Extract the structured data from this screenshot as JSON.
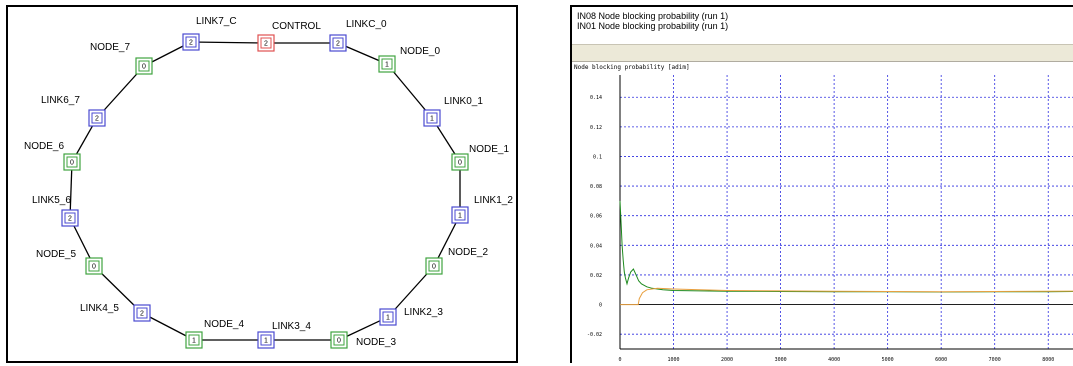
{
  "network": {
    "nodes": [
      {
        "label": "CONTROL",
        "value": "2",
        "kind": "control"
      },
      {
        "label": "LINKC_0",
        "value": "2",
        "kind": "link"
      },
      {
        "label": "NODE_0",
        "value": "1",
        "kind": "node"
      },
      {
        "label": "LINK0_1",
        "value": "1",
        "kind": "link"
      },
      {
        "label": "NODE_1",
        "value": "0",
        "kind": "node"
      },
      {
        "label": "LINK1_2",
        "value": "1",
        "kind": "link"
      },
      {
        "label": "NODE_2",
        "value": "0",
        "kind": "node"
      },
      {
        "label": "LINK2_3",
        "value": "1",
        "kind": "link"
      },
      {
        "label": "NODE_3",
        "value": "0",
        "kind": "node"
      },
      {
        "label": "LINK3_4",
        "value": "1",
        "kind": "link"
      },
      {
        "label": "NODE_4",
        "value": "1",
        "kind": "node"
      },
      {
        "label": "LINK4_5",
        "value": "2",
        "kind": "link"
      },
      {
        "label": "NODE_5",
        "value": "0",
        "kind": "node"
      },
      {
        "label": "LINK5_6",
        "value": "2",
        "kind": "link"
      },
      {
        "label": "NODE_6",
        "value": "0",
        "kind": "node"
      },
      {
        "label": "LINK6_7",
        "value": "2",
        "kind": "link"
      },
      {
        "label": "NODE_7",
        "value": "0",
        "kind": "node"
      },
      {
        "label": "LINK7_C",
        "value": "2",
        "kind": "link"
      }
    ],
    "colors": {
      "node": "#3fa33f",
      "link": "#4a4ad0",
      "control": "#e05050",
      "edge": "#000000"
    }
  },
  "plot": {
    "legend": [
      {
        "text": "IN08 Node blocking probability (run 1)",
        "color": "#1e8a1e"
      },
      {
        "text": "IN01 Node blocking probability (run 1)",
        "color": "#e8a040"
      }
    ],
    "title": "Node blocking probability [adim]"
  },
  "chart_data": {
    "type": "line",
    "title": "Node blocking probability [adim]",
    "xlabel": "",
    "ylabel": "",
    "xlim": [
      0,
      8500
    ],
    "ylim": [
      -0.03,
      0.155
    ],
    "xticks": [
      "0",
      "1000",
      "2000",
      "3000",
      "4000",
      "5000",
      "6000",
      "7000",
      "8000"
    ],
    "yticks": [
      "0.14",
      "0.12",
      "0.1",
      "0.08",
      "0.06",
      "0.04",
      "0.02",
      "0",
      "-0.02"
    ],
    "grid": true,
    "series": [
      {
        "name": "IN08 Node blocking probability (run 1)",
        "color": "#1e8a1e",
        "x": [
          0,
          20,
          40,
          60,
          80,
          100,
          130,
          160,
          200,
          250,
          300,
          350,
          400,
          500,
          600,
          800,
          1000,
          1500,
          2000,
          3000,
          4000,
          5000,
          6000,
          7000,
          8000,
          8500
        ],
        "y": [
          0.07,
          0.055,
          0.04,
          0.03,
          0.022,
          0.018,
          0.014,
          0.018,
          0.022,
          0.024,
          0.02,
          0.016,
          0.014,
          0.012,
          0.011,
          0.01,
          0.0095,
          0.0092,
          0.009,
          0.0088,
          0.0087,
          0.0086,
          0.0085,
          0.0086,
          0.0087,
          0.0088
        ]
      },
      {
        "name": "IN01 Node blocking probability (run 1)",
        "color": "#e8a040",
        "x": [
          0,
          200,
          340,
          360,
          420,
          500,
          700,
          1000,
          1500,
          2000,
          3000,
          4000,
          5000,
          6000,
          7000,
          8000,
          8500
        ],
        "y": [
          0,
          0,
          0,
          0.004,
          0.008,
          0.01,
          0.011,
          0.0105,
          0.01,
          0.0095,
          0.0092,
          0.009,
          0.0088,
          0.0087,
          0.0088,
          0.009,
          0.0091
        ]
      }
    ]
  }
}
